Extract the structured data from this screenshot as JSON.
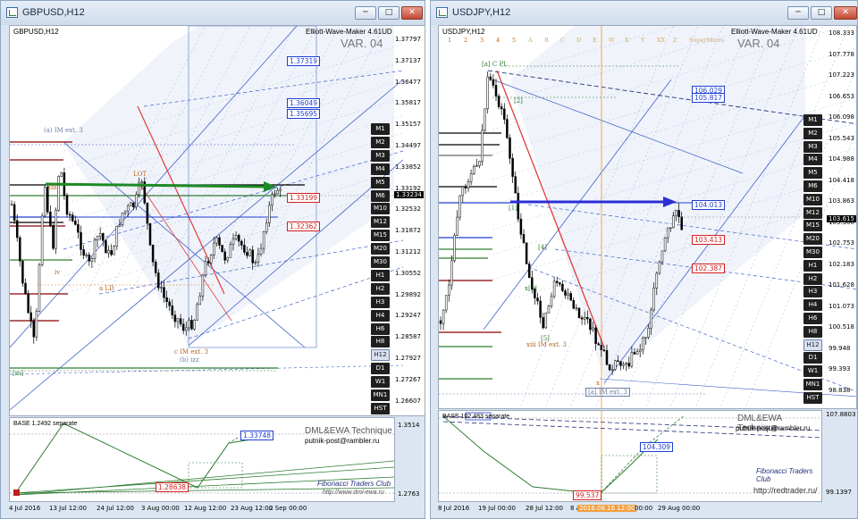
{
  "left": {
    "window_title": "GBPUSD,H12",
    "symbol_label": "GBPUSD,H12",
    "indicator": "Elliott-Wave-Maker 4.61UD",
    "version": "VAR. 04",
    "timeframes": [
      "M1",
      "M2",
      "M3",
      "M4",
      "M5",
      "M6",
      "M10",
      "M12",
      "M15",
      "M20",
      "M30",
      "H1",
      "H2",
      "H3",
      "H4",
      "H6",
      "H8",
      "H12",
      "D1",
      "W1",
      "MN1",
      "HST"
    ],
    "active_tf": "H12",
    "price_axis": [
      "1.37797",
      "1.37137",
      "1.36477",
      "1.35817",
      "1.35157",
      "1.34497",
      "1.33852",
      "1.33192",
      "1.32532",
      "1.31872",
      "1.31212",
      "1.30552",
      "1.29892",
      "1.29247",
      "1.28587",
      "1.27927",
      "1.27267",
      "1.26607"
    ],
    "current_price": "1.33234",
    "levels": [
      {
        "text": "1.37319",
        "color": "blue"
      },
      {
        "text": "1.36049",
        "color": "blue"
      },
      {
        "text": "1.35695",
        "color": "blue"
      },
      {
        "text": "1.33199",
        "color": "red"
      },
      {
        "text": "1.32362",
        "color": "red"
      }
    ],
    "annotations": {
      "a_im": "(a) IM ext. 3",
      "c_im": "c IM ext. 3",
      "b_izz": "(b) izz",
      "lot": "LOT",
      "ld": "a LD",
      "iv": "iv",
      "m": "[m]",
      "xiii": "xiii"
    },
    "sub": {
      "base_label": "BASE 1.2492 separate",
      "sub_axis_top": "1.3514",
      "sub_axis_bot": "1.2763",
      "level_top": "1.33748",
      "level_bot": "1.28638",
      "tech": "DML&EWA Technique",
      "email": "putnik-post@rambler.ru",
      "club": "Fibonacci Traders Club",
      "site": "http://www.dml-ewa.ru"
    },
    "x_axis": [
      "4 Jul 2016",
      "13 Jul 12:00",
      "24 Jul 12:00",
      "3 Aug 00:00",
      "12 Aug 12:00",
      "23 Aug 12:00",
      "2 Sep 00:00"
    ]
  },
  "right": {
    "window_title": "USDJPY,H12",
    "symbol_label": "USDJPY,H12",
    "indicator": "Elliott-Wave-Maker 4.61UD",
    "version": "VAR. 04",
    "timeframes": [
      "M1",
      "M2",
      "M3",
      "M4",
      "M5",
      "M6",
      "M10",
      "M12",
      "M15",
      "M20",
      "M30",
      "H1",
      "H2",
      "H3",
      "H4",
      "H6",
      "H8",
      "H12",
      "D1",
      "W1",
      "MN1",
      "HST"
    ],
    "active_tf": "H12",
    "price_axis": [
      "108.333",
      "107.778",
      "107.223",
      "106.653",
      "106.098",
      "105.543",
      "104.988",
      "104.418",
      "103.863",
      "103.308",
      "102.753",
      "102.183",
      "101.628",
      "101.073",
      "100.518",
      "99.948",
      "99.393",
      "98.838"
    ],
    "current_price": "103.615",
    "levels": [
      {
        "text": "106.029",
        "color": "blue"
      },
      {
        "text": "105.817",
        "color": "blue"
      },
      {
        "text": "104.013",
        "color": "blue"
      },
      {
        "text": "103.413",
        "color": "red"
      },
      {
        "text": "102.387",
        "color": "red"
      }
    ],
    "top_numbers": [
      "1",
      "2",
      "3",
      "4",
      "5",
      "A",
      "B",
      "C",
      "D",
      "E",
      "W",
      "X",
      "Y",
      "XX",
      "Z",
      "SuperMicro"
    ],
    "annotations": {
      "a_cpl": "[a] C PL",
      "a_im": "[a] IM ext. 3",
      "xiii": "xiii IM ext. 3",
      "x3": "x[3]",
      "i1": "[1]",
      "i4": "[4]",
      "i2": "[2]",
      "i5": "[5]",
      "x": "x"
    },
    "sub": {
      "base_label": "BASE 102.483 separate",
      "sub_axis_top": "107.8803",
      "sub_axis_bot": "99.1397",
      "level_mid": "104.309",
      "level_bot": "99.537",
      "tech": "DML&EWA Technique",
      "email": "putnik-post@rambler.ru",
      "club": "Fibonacci Traders Club",
      "site": "http://redtrader.ru/"
    },
    "x_axis": [
      "8 Jul 2016",
      "19 Jul 00:00",
      "28 Jul 12:00",
      "8 A",
      "2016.08.16 12:00",
      "00:00",
      "29 Aug 00:00"
    ]
  }
}
